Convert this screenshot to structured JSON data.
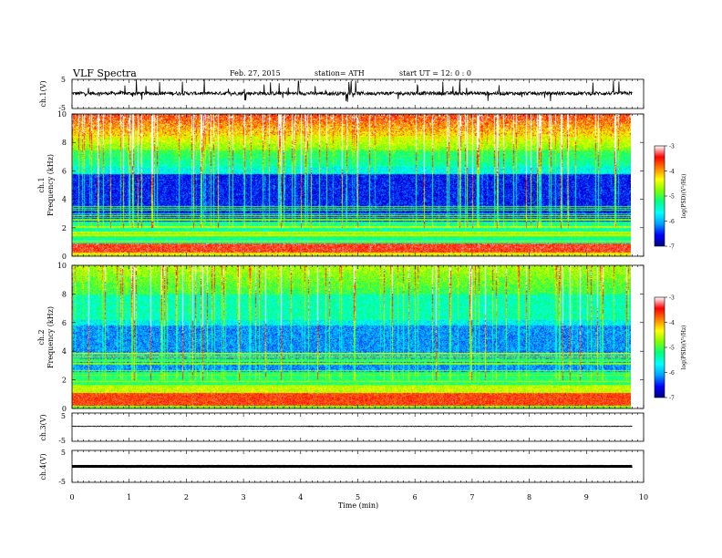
{
  "header": {
    "title": "VLF  Spectra",
    "date": "Feb. 27, 2015",
    "station": "station= ATH",
    "start": "start  UT  =    12: 0   : 0"
  },
  "colors": {
    "background": "#ffffff",
    "axis": "#000000",
    "colormap": [
      "#000080",
      "#0000ff",
      "#00a0ff",
      "#00ffff",
      "#00ff80",
      "#80ff00",
      "#ffff00",
      "#ff8000",
      "#ff0000",
      "#ffffff"
    ]
  },
  "chart_data": [
    {
      "type": "line",
      "name": "ch1-waveform",
      "ylabel": "ch.1(V)",
      "ylim": [
        -5,
        5
      ],
      "yticks": [
        "5",
        "-5"
      ],
      "xlim": [
        0,
        10
      ],
      "trace": "dense noisy waveform with frequent spikes, baseline slightly positive",
      "baseline": 0.2
    },
    {
      "type": "heatmap",
      "name": "ch1-spectrogram",
      "ylabel_channel": "ch.1",
      "ylabel": "Frequency (kHz)",
      "ylim": [
        0,
        10
      ],
      "yticks": [
        "0",
        "2",
        "4",
        "6",
        "8",
        "10"
      ],
      "xlim": [
        0,
        9.8
      ],
      "colorbar": {
        "label": "log(PSD)(V²/Hz)",
        "range": [
          -7,
          -3
        ],
        "ticks": [
          "-3",
          "-4",
          "-5",
          "-6",
          "-7"
        ]
      }
    },
    {
      "type": "heatmap",
      "name": "ch2-spectrogram",
      "ylabel_channel": "ch.2",
      "ylabel": "Frequency (kHz)",
      "ylim": [
        0,
        10
      ],
      "yticks": [
        "0",
        "2",
        "4",
        "6",
        "8",
        "10"
      ],
      "xlim": [
        0,
        9.8
      ],
      "colorbar": {
        "label": "log(PSD)(V²/Hz)",
        "range": [
          -7,
          -3
        ],
        "ticks": [
          "-3",
          "-4",
          "-5",
          "-6",
          "-7"
        ]
      }
    },
    {
      "type": "line",
      "name": "ch3-waveform",
      "ylabel": "ch.3(V)",
      "ylim": [
        -5,
        5
      ],
      "yticks": [
        "5",
        "-5"
      ],
      "xlim": [
        0,
        10
      ],
      "baseline": 0.3
    },
    {
      "type": "line",
      "name": "ch4-waveform",
      "ylabel": "ch.4(V)",
      "ylim": [
        -5,
        5
      ],
      "yticks": [
        "5",
        "-5"
      ],
      "xlim": [
        0,
        10
      ],
      "baseline": 0.0
    }
  ],
  "xaxis": {
    "label": "Time  (min)",
    "range": [
      0,
      10
    ],
    "ticks": [
      "0",
      "1",
      "2",
      "3",
      "4",
      "5",
      "6",
      "7",
      "8",
      "9",
      "10"
    ]
  }
}
